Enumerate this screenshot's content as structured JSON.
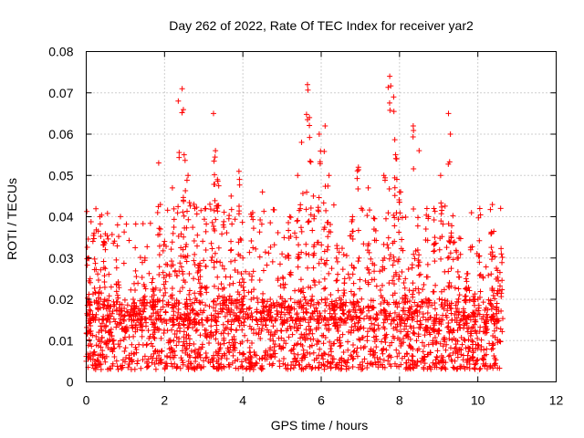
{
  "chart_data": {
    "type": "scatter",
    "title": "Day 262 of 2022, Rate Of TEC Index for receiver yar2",
    "xlabel": "GPS time / hours",
    "ylabel": "ROTI / TECUs",
    "xlim": [
      0,
      12
    ],
    "ylim": [
      0,
      0.08
    ],
    "xticks": [
      "0",
      "2",
      "4",
      "6",
      "8",
      "10",
      "12"
    ],
    "yticks": [
      "0",
      "0.01",
      "0.02",
      "0.03",
      "0.04",
      "0.05",
      "0.06",
      "0.07",
      "0.08"
    ],
    "grid": true,
    "marker": "+",
    "color": "#ff0000",
    "series": [
      {
        "name": "ROTI",
        "x": [
          0.0,
          0.05,
          0.1,
          0.2,
          0.35,
          0.45,
          0.6,
          0.8,
          1.0,
          1.2,
          1.5,
          1.7,
          1.85,
          2.0,
          2.2,
          2.35,
          2.45,
          2.5,
          2.6,
          2.75,
          2.9,
          3.05,
          3.25,
          3.3,
          3.35,
          3.5,
          3.7,
          3.9,
          4.0,
          4.25,
          4.5,
          4.7,
          5.0,
          5.2,
          5.4,
          5.5,
          5.65,
          5.7,
          5.8,
          5.95,
          6.1,
          6.2,
          6.4,
          6.6,
          6.8,
          6.95,
          7.2,
          7.35,
          7.6,
          7.75,
          7.85,
          7.9,
          8.0,
          8.15,
          8.35,
          8.5,
          8.7,
          8.9,
          9.05,
          9.25,
          9.3,
          9.5,
          9.7,
          9.9,
          10.05,
          10.2,
          10.35,
          10.5,
          10.6
        ],
        "y": [
          0.005,
          0.03,
          0.025,
          0.036,
          0.04,
          0.034,
          0.012,
          0.038,
          0.013,
          0.02,
          0.03,
          0.025,
          0.053,
          0.034,
          0.047,
          0.068,
          0.071,
          0.055,
          0.05,
          0.043,
          0.028,
          0.042,
          0.065,
          0.056,
          0.049,
          0.038,
          0.045,
          0.051,
          0.03,
          0.041,
          0.046,
          0.02,
          0.031,
          0.04,
          0.05,
          0.058,
          0.072,
          0.064,
          0.045,
          0.06,
          0.062,
          0.05,
          0.033,
          0.025,
          0.04,
          0.052,
          0.047,
          0.037,
          0.05,
          0.074,
          0.069,
          0.055,
          0.046,
          0.025,
          0.062,
          0.056,
          0.042,
          0.035,
          0.05,
          0.065,
          0.06,
          0.03,
          0.025,
          0.02,
          0.042,
          0.015,
          0.036,
          0.027,
          0.031
        ]
      }
    ],
    "baseline_band": {
      "description": "dense cloud of points across 0 to 10.6 hours",
      "y_range": [
        0.003,
        0.02
      ]
    }
  }
}
